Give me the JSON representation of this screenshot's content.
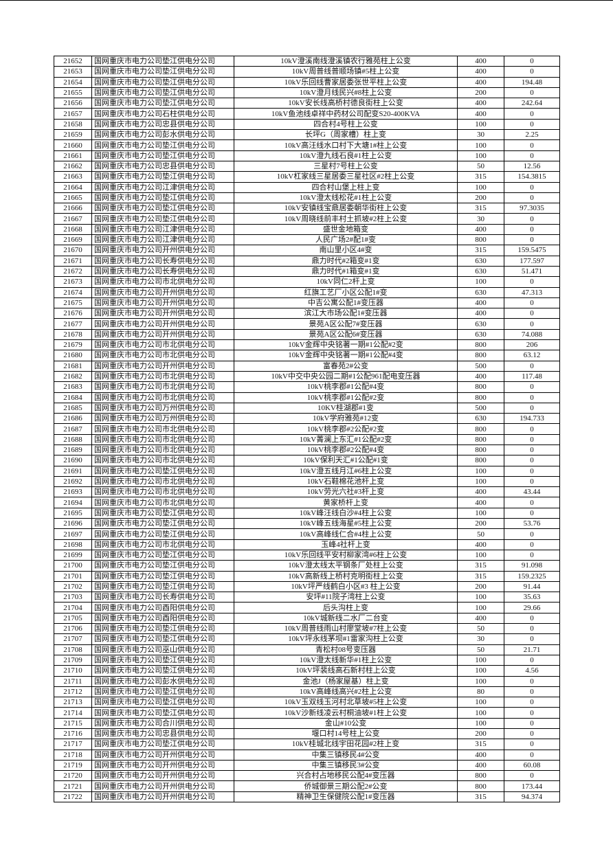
{
  "table": {
    "rows": [
      [
        "21652",
        "国网重庆市电力公司垫江供电分公司",
        "10kV澄溪南线澄溪镇农行雅苑柱上公变",
        "400",
        "0"
      ],
      [
        "21653",
        "国网重庆市电力公司垫江供电分公司",
        "10kV周普线普顺场镇#5柱上公变",
        "400",
        "0"
      ],
      [
        "21654",
        "国网重庆市电力公司垫江供电分公司",
        "10kV乐回线曹家居委张世平柱上公变",
        "400",
        "194.48"
      ],
      [
        "21655",
        "国网重庆市电力公司垫江供电分公司",
        "10kV澄月线民兴#8柱上公变",
        "200",
        "0"
      ],
      [
        "21656",
        "国网重庆市电力公司垫江供电分公司",
        "10kV安长线高桥村德良街柱上公变",
        "400",
        "242.64"
      ],
      [
        "21657",
        "国网重庆市电力公司石柱供电分公司",
        "10kV鱼池线卓祥中药材公司配变S20-400KVA",
        "400",
        "0"
      ],
      [
        "21658",
        "国网重庆市电力公司忠县供电分公司",
        "四合村4号柱上公变",
        "100",
        "0"
      ],
      [
        "21659",
        "国网重庆市电力公司彭水供电分公司",
        "长坪G（周家槽）柱上变",
        "30",
        "2.25"
      ],
      [
        "21660",
        "国网重庆市电力公司垫江供电分公司",
        "10kV高汪线水口村下大塘1#柱上公变",
        "100",
        "0"
      ],
      [
        "21661",
        "国网重庆市电力公司垫江供电分公司",
        "10kV澄九线石良#1柱上公变",
        "100",
        "0"
      ],
      [
        "21662",
        "国网重庆市电力公司忠县供电分公司",
        "三星村7号柱上公变",
        "50",
        "12.56"
      ],
      [
        "21663",
        "国网重庆市电力公司垫江供电分公司",
        "10kV杠家线三星居委三星社区#2柱上公变",
        "315",
        "154.3815"
      ],
      [
        "21664",
        "国网重庆市电力公司江津供电分公司",
        "四合村山堡上柱上变",
        "100",
        "0"
      ],
      [
        "21665",
        "国网重庆市电力公司垫江供电分公司",
        "10kV澄太线松花#1柱上公变",
        "200",
        "0"
      ],
      [
        "21666",
        "国网重庆市电力公司垫江供电分公司",
        "10kV安镇线宝鼎居委朝华街柱上公变",
        "315",
        "97.3035"
      ],
      [
        "21667",
        "国网重庆市电力公司垫江供电分公司",
        "10kV周晓线前丰村土抓坡#2柱上公变",
        "30",
        "0"
      ],
      [
        "21668",
        "国网重庆市电力公司江津供电分公司",
        "盛世金地箱变",
        "400",
        "0"
      ],
      [
        "21669",
        "国网重庆市电力公司江津供电分公司",
        "人民广场2#配1#变",
        "800",
        "0"
      ],
      [
        "21670",
        "国网重庆市电力公司开州供电分公司",
        "南山里小区4#变",
        "315",
        "159.5475"
      ],
      [
        "21671",
        "国网重庆市电力公司长寿供电分公司",
        "鼎力时代#2箱变#1变",
        "630",
        "177.597"
      ],
      [
        "21672",
        "国网重庆市电力公司长寿供电分公司",
        "鼎力时代#1箱变#1变",
        "630",
        "51.471"
      ],
      [
        "21673",
        "国网重庆市电力公司市北供电分公司",
        "10kV同仁2杆上变",
        "100",
        "0"
      ],
      [
        "21674",
        "国网重庆市电力公司开州供电分公司",
        "红旗工艺厂小区公配1#变",
        "630",
        "47.313"
      ],
      [
        "21675",
        "国网重庆市电力公司开州供电分公司",
        "中吉公寓公配1#变压器",
        "400",
        "0"
      ],
      [
        "21676",
        "国网重庆市电力公司开州供电分公司",
        "滨江大市场公配1#变压器",
        "400",
        "0"
      ],
      [
        "21677",
        "国网重庆市电力公司开州供电分公司",
        "景苑A区公配7#变压器",
        "630",
        "0"
      ],
      [
        "21678",
        "国网重庆市电力公司开州供电分公司",
        "景苑A区公配6#变压器",
        "630",
        "74.088"
      ],
      [
        "21679",
        "国网重庆市电力公司市北供电分公司",
        "10kV金辉中央铭著一期#1公配#2变",
        "800",
        "206"
      ],
      [
        "21680",
        "国网重庆市电力公司市北供电分公司",
        "10kV金辉中央铭著一期#1公配#4变",
        "800",
        "63.12"
      ],
      [
        "21681",
        "国网重庆市电力公司开州供电分公司",
        "富春苑2#公变",
        "500",
        "0"
      ],
      [
        "21682",
        "国网重庆市电力公司市北供电分公司",
        "10kV中交中央公园二期#1公配961配电变压器",
        "400",
        "117.48"
      ],
      [
        "21683",
        "国网重庆市电力公司市北供电分公司",
        "10kV桃李郡#1公配#4变",
        "800",
        "0"
      ],
      [
        "21684",
        "国网重庆市电力公司市北供电分公司",
        "10kV桃李郡#1公配#2变",
        "800",
        "0"
      ],
      [
        "21685",
        "国网重庆市电力公司万州供电分公司",
        "10KV桂湖郡#1变",
        "500",
        "0"
      ],
      [
        "21686",
        "国网重庆市电力公司万州供电分公司",
        "10kV学府雅苑#12变",
        "630",
        "194.733"
      ],
      [
        "21687",
        "国网重庆市电力公司市北供电分公司",
        "10kV桃李郡#2公配#2变",
        "800",
        "0"
      ],
      [
        "21688",
        "国网重庆市电力公司市北供电分公司",
        "10kV菁澜上东汇#1公配#2变",
        "800",
        "0"
      ],
      [
        "21689",
        "国网重庆市电力公司市北供电分公司",
        "10kV桃李郡#2公配#4变",
        "800",
        "0"
      ],
      [
        "21690",
        "国网重庆市电力公司市北供电分公司",
        "10kV保利天汇#1公配#1变",
        "800",
        "0"
      ],
      [
        "21691",
        "国网重庆市电力公司垫江供电分公司",
        "10kV澄五线月江#6柱上公变",
        "100",
        "0"
      ],
      [
        "21692",
        "国网重庆市电力公司市北供电分公司",
        "10kV石鞋棉花池杆上变",
        "100",
        "0"
      ],
      [
        "21693",
        "国网重庆市电力公司市北供电分公司",
        "10kV劳光六社#3杆上变",
        "400",
        "43.44"
      ],
      [
        "21694",
        "国网重庆市电力公司市北供电分公司",
        "黄家桥杆上变",
        "400",
        "0"
      ],
      [
        "21695",
        "国网重庆市电力公司垫江供电分公司",
        "10kV峰汪线白沙#4柱上公变",
        "100",
        "0"
      ],
      [
        "21696",
        "国网重庆市电力公司垫江供电分公司",
        "10kV峰五线海星#5柱上公变",
        "200",
        "53.76"
      ],
      [
        "21697",
        "国网重庆市电力公司垫江供电分公司",
        "10kV高峰线仁合#4柱上公变",
        "50",
        "0"
      ],
      [
        "21698",
        "国网重庆市电力公司市北供电分公司",
        "玉峰4社杆上变",
        "400",
        "0"
      ],
      [
        "21699",
        "国网重庆市电力公司垫江供电分公司",
        "10kV乐回线平安村柳家湾#6柱上公变",
        "100",
        "0"
      ],
      [
        "21700",
        "国网重庆市电力公司垫江供电分公司",
        "10kV澄太线太平钢条厂处柱上公变",
        "315",
        "91.098"
      ],
      [
        "21701",
        "国网重庆市电力公司垫江供电分公司",
        "10kV高新线上桥村克明街柱上公变",
        "315",
        "159.2325"
      ],
      [
        "21702",
        "国网重庆市电力公司垫江供电分公司",
        "10kV坪严线鹤白小区#3 柱上公变",
        "200",
        "91.44"
      ],
      [
        "21703",
        "国网重庆市电力公司长寿供电分公司",
        "安坪#11院子湾柱上公变",
        "100",
        "35.63"
      ],
      [
        "21704",
        "国网重庆市电力公司酉阳供电分公司",
        "后头沟柱上变",
        "100",
        "29.66"
      ],
      [
        "21705",
        "国网重庆市电力公司酉阳供电分公司",
        "10kV城新线二水厂二台变",
        "400",
        "0"
      ],
      [
        "21706",
        "国网重庆市电力公司垫江供电分公司",
        "10kV周普线雨山村廖堂坡#7柱上公变",
        "50",
        "0"
      ],
      [
        "21707",
        "国网重庆市电力公司垫江供电分公司",
        "10kV坪永线茅坝#1雷家沟柱上公变",
        "30",
        "0"
      ],
      [
        "21708",
        "国网重庆市电力公司巫山供电分公司",
        "青松村08号变压器",
        "50",
        "21.71"
      ],
      [
        "21709",
        "国网重庆市电力公司垫江供电分公司",
        "10kV澄太线新华#1柱上公变",
        "100",
        "0"
      ],
      [
        "21710",
        "国网重庆市电力公司垫江供电分公司",
        "10kV坪裴线高石新村柱上公变",
        "100",
        "4.56"
      ],
      [
        "21711",
        "国网重庆市电力公司彭水供电分公司",
        "金池J（杨家屋基）柱上变",
        "100",
        "0"
      ],
      [
        "21712",
        "国网重庆市电力公司垫江供电分公司",
        "10kV高峰线高兴#2柱上公变",
        "80",
        "0"
      ],
      [
        "21713",
        "国网重庆市电力公司垫江供电分公司",
        "10kV玉双线玉河村北草坡#5柱上公变",
        "100",
        "0"
      ],
      [
        "21714",
        "国网重庆市电力公司垫江供电分公司",
        "10kV沙新线凌云村桐油坡#1柱上公变",
        "100",
        "0"
      ],
      [
        "21715",
        "国网重庆市电力公司合川供电分公司",
        "金山#10公变",
        "100",
        "0"
      ],
      [
        "21716",
        "国网重庆市电力公司忠县供电分公司",
        "堰口村14号柱上公变",
        "200",
        "0"
      ],
      [
        "21717",
        "国网重庆市电力公司垫江供电分公司",
        "10kV桂城北线宇田花园#2柱上变",
        "315",
        "0"
      ],
      [
        "21718",
        "国网重庆市电力公司开州供电分公司",
        "中集三镇移民4#公变",
        "400",
        "0"
      ],
      [
        "21719",
        "国网重庆市电力公司开州供电分公司",
        "中集三镇移民3#公变",
        "400",
        "60.08"
      ],
      [
        "21720",
        "国网重庆市电力公司开州供电分公司",
        "兴合村占地移民公配4#变压器",
        "800",
        "0"
      ],
      [
        "21721",
        "国网重庆市电力公司开州供电分公司",
        "侨城御景三期公配2#公变",
        "800",
        "173.44"
      ],
      [
        "21722",
        "国网重庆市电力公司开州供电分公司",
        "精神卫生保健院公配1#变压器",
        "315",
        "94.374"
      ]
    ]
  }
}
